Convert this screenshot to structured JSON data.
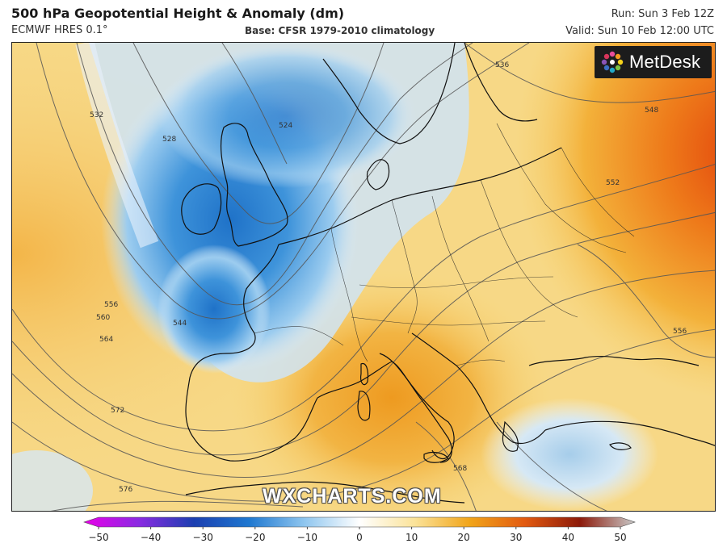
{
  "header": {
    "title": "500 hPa Geopotential Height & Anomaly (dm)",
    "model": "ECMWF HRES 0.1°",
    "base": "Base: CFSR 1979-2010 climatology",
    "run": "Run: Sun 3 Feb 12Z",
    "valid": "Valid: Sun 10 Feb 12:00 UTC"
  },
  "logo": {
    "text": "MetDesk",
    "icon": "metdesk-starburst-icon"
  },
  "watermark": "WXCHARTS.COM",
  "contour_labels": [
    "532",
    "528",
    "524",
    "536",
    "548",
    "552",
    "556",
    "556",
    "560",
    "564",
    "544",
    "572",
    "568",
    "576"
  ],
  "colorbar": {
    "ticks": [
      "−50",
      "−40",
      "−30",
      "−20",
      "−10",
      "0",
      "10",
      "20",
      "30",
      "40",
      "50"
    ],
    "colors": [
      "#e800e8",
      "#8a2be2",
      "#1b3fb0",
      "#1f78d0",
      "#8fc6ef",
      "#ffffff",
      "#fbe39a",
      "#f1a51a",
      "#e25a10",
      "#8c1a0a",
      "#c9c9c9"
    ]
  },
  "colors": {
    "negative_anomaly": "#2f86d3",
    "positive_anomaly": "#f0a12a",
    "strong_positive": "#ec5a12",
    "coastline": "#111111",
    "contour": "#555555"
  }
}
